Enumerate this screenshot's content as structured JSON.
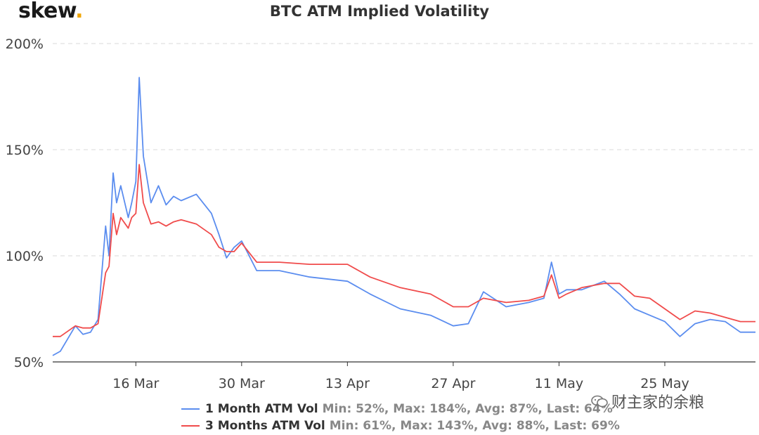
{
  "brand": {
    "name": "skew",
    "dot": "."
  },
  "watermark": {
    "text": "财主家的余粮",
    "icon": "wechat-icon"
  },
  "chart_data": {
    "type": "line",
    "title": "BTC ATM Implied Volatility",
    "xlabel": "",
    "ylabel": "",
    "x_axis": {
      "type": "date",
      "min": "2020-03-05",
      "max": "2020-06-06",
      "ticks": [
        "16 Mar",
        "30 Mar",
        "13 Apr",
        "27 Apr",
        "11 May",
        "25 May"
      ]
    },
    "y_axis": {
      "min": 50,
      "max": 200,
      "ticks": [
        "50%",
        "100%",
        "150%",
        "200%"
      ],
      "tick_values": [
        50,
        100,
        150,
        200
      ]
    },
    "grid": "horizontal dashed",
    "legend_position": "bottom",
    "series": [
      {
        "name": "1 Month ATM Vol",
        "stats": "Min: 52%, Max: 184%, Avg: 87%, Last: 64%",
        "color": "#5b8def",
        "x": [
          "2020-03-05",
          "2020-03-06",
          "2020-03-08",
          "2020-03-09",
          "2020-03-10",
          "2020-03-11",
          "2020-03-12",
          "2020-03-12",
          "2020-03-13",
          "2020-03-13",
          "2020-03-14",
          "2020-03-15",
          "2020-03-15",
          "2020-03-16",
          "2020-03-16",
          "2020-03-17",
          "2020-03-18",
          "2020-03-19",
          "2020-03-20",
          "2020-03-21",
          "2020-03-22",
          "2020-03-24",
          "2020-03-26",
          "2020-03-27",
          "2020-03-28",
          "2020-03-29",
          "2020-03-30",
          "2020-04-01",
          "2020-04-04",
          "2020-04-08",
          "2020-04-13",
          "2020-04-16",
          "2020-04-20",
          "2020-04-24",
          "2020-04-27",
          "2020-04-29",
          "2020-05-01",
          "2020-05-04",
          "2020-05-07",
          "2020-05-09",
          "2020-05-10",
          "2020-05-11",
          "2020-05-12",
          "2020-05-14",
          "2020-05-17",
          "2020-05-19",
          "2020-05-21",
          "2020-05-23",
          "2020-05-25",
          "2020-05-27",
          "2020-05-29",
          "2020-05-31",
          "2020-06-02",
          "2020-06-04",
          "2020-06-06"
        ],
        "y": [
          53,
          55,
          67,
          63,
          64,
          70,
          114,
          100,
          139,
          125,
          133,
          118,
          125,
          135,
          184,
          147,
          125,
          133,
          124,
          128,
          126,
          129,
          120,
          110,
          99,
          104,
          107,
          93,
          93,
          90,
          88,
          82,
          75,
          72,
          67,
          68,
          83,
          76,
          78,
          80,
          97,
          82,
          84,
          84,
          88,
          82,
          75,
          72,
          69,
          62,
          68,
          70,
          69,
          64,
          64
        ]
      },
      {
        "name": "3 Months ATM Vol",
        "stats": "Min: 61%, Max: 143%, Avg: 88%, Last: 69%",
        "color": "#f04b4b",
        "x": [
          "2020-03-05",
          "2020-03-06",
          "2020-03-08",
          "2020-03-09",
          "2020-03-10",
          "2020-03-11",
          "2020-03-12",
          "2020-03-12",
          "2020-03-13",
          "2020-03-13",
          "2020-03-14",
          "2020-03-15",
          "2020-03-15",
          "2020-03-16",
          "2020-03-16",
          "2020-03-17",
          "2020-03-18",
          "2020-03-19",
          "2020-03-20",
          "2020-03-21",
          "2020-03-22",
          "2020-03-24",
          "2020-03-26",
          "2020-03-27",
          "2020-03-28",
          "2020-03-29",
          "2020-03-30",
          "2020-04-01",
          "2020-04-04",
          "2020-04-08",
          "2020-04-13",
          "2020-04-16",
          "2020-04-20",
          "2020-04-24",
          "2020-04-27",
          "2020-04-29",
          "2020-05-01",
          "2020-05-04",
          "2020-05-07",
          "2020-05-09",
          "2020-05-10",
          "2020-05-11",
          "2020-05-12",
          "2020-05-14",
          "2020-05-17",
          "2020-05-19",
          "2020-05-21",
          "2020-05-23",
          "2020-05-25",
          "2020-05-27",
          "2020-05-29",
          "2020-05-31",
          "2020-06-02",
          "2020-06-04",
          "2020-06-06"
        ],
        "y": [
          62,
          62,
          67,
          66,
          66,
          68,
          92,
          95,
          120,
          110,
          118,
          113,
          118,
          120,
          143,
          125,
          115,
          116,
          114,
          116,
          117,
          115,
          110,
          104,
          102,
          102,
          106,
          97,
          97,
          96,
          96,
          90,
          85,
          82,
          76,
          76,
          80,
          78,
          79,
          81,
          91,
          80,
          82,
          85,
          87,
          87,
          81,
          80,
          75,
          70,
          74,
          73,
          71,
          69,
          69
        ]
      }
    ]
  }
}
